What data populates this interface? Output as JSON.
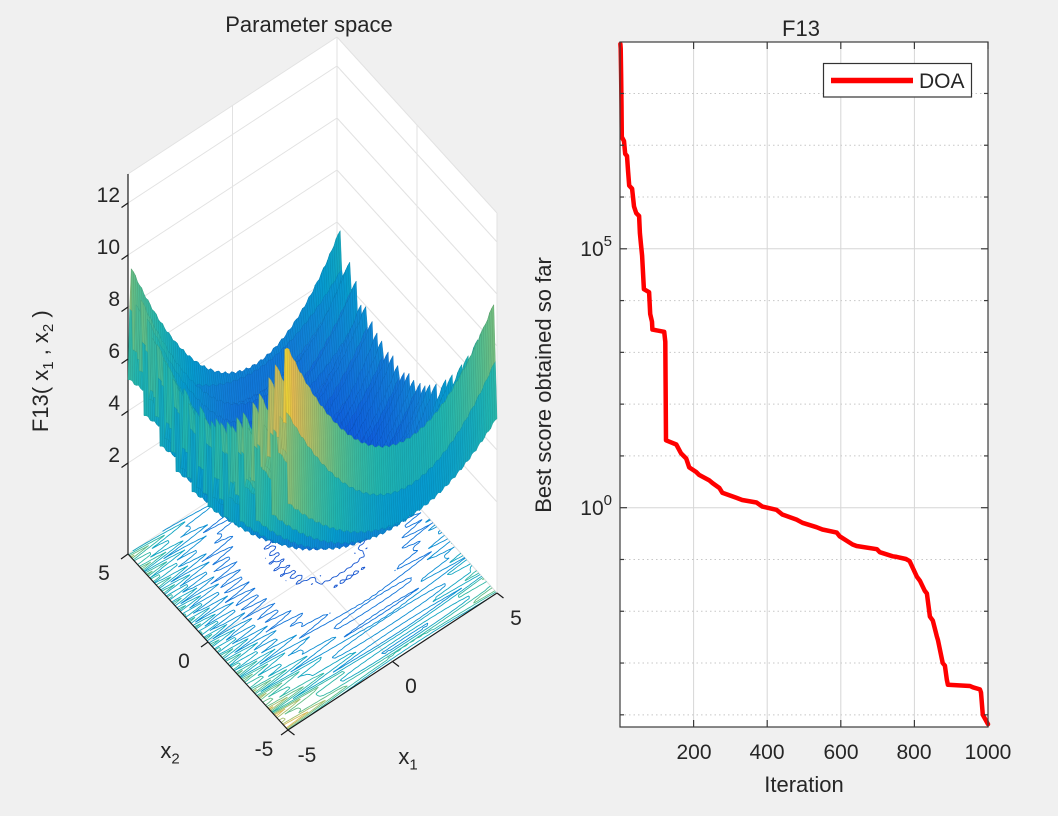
{
  "colors": {
    "background": "#f0f0f0",
    "plot_bg": "#ffffff",
    "axes_text": "#262626",
    "axis_line": "#3b3b3b",
    "grid_solid": "#d6d6d6",
    "grid_dotted": "#c7c7c7",
    "wall_grid": "#e2e2e2",
    "curve_red": "#ff0000",
    "colormap": "parula"
  },
  "left_plot": {
    "title": "Parameter space",
    "zlabel": {
      "prefix": "F13( x",
      "sub1": "1",
      "middle": " , x",
      "sub2": "2",
      "suffix": " )"
    },
    "x1label": {
      "base": "x",
      "sub": "1"
    },
    "x2label": {
      "base": "x",
      "sub": "2"
    },
    "zticks": [
      "2",
      "4",
      "6",
      "8",
      "10",
      "12"
    ],
    "x1_ticks": [
      "-5",
      "0",
      "5"
    ],
    "x2_ticks": [
      "5",
      "0",
      "-5"
    ]
  },
  "right_plot": {
    "title": "F13",
    "xlabel": "Iteration",
    "ylabel": "Best score obtained so far",
    "legend": {
      "label": "DOA"
    },
    "xticks": [
      "200",
      "400",
      "600",
      "800",
      "1000"
    ],
    "ytick_labels": [
      {
        "base": "10",
        "exp": "5",
        "log10": 5
      },
      {
        "base": "10",
        "exp": "0",
        "log10": 0
      }
    ]
  },
  "chart_data": [
    {
      "type": "surface",
      "title": "Parameter space",
      "function": "F13",
      "xlabel": "x_1",
      "ylabel": "x_2",
      "zlabel": "F13( x_1 , x_2 )",
      "x_range": [
        -5,
        5
      ],
      "y_range": [
        -5,
        5
      ],
      "z_ticks": [
        2,
        4,
        6,
        8,
        10,
        12
      ],
      "colormap": "parula",
      "has_floor_contour": true,
      "view": "3d-corner, bowl-shaped spiky multimodal surface, low blue valley near origin, tall yellow spikes toward corners"
    },
    {
      "type": "line",
      "title": "F13",
      "xlabel": "Iteration",
      "ylabel": "Best score obtained so far",
      "x_range": [
        0,
        1000
      ],
      "y_scale": "log10",
      "y_range_log10": [
        -4.23,
        9.0
      ],
      "x_major_ticks": [
        200,
        400,
        600,
        800,
        1000
      ],
      "y_major_tick_logs": [
        5,
        0
      ],
      "grid": "major solid, minor decades dotted",
      "legend_position": "northeast",
      "series": [
        {
          "name": "DOA",
          "color": "#ff0000",
          "line_width": 4.5,
          "points": [
            [
              1,
              900000000
            ],
            [
              2,
              740000000
            ],
            [
              3,
              240000000
            ],
            [
              4,
              60000000
            ],
            [
              5,
              14500000
            ],
            [
              11,
              12000000
            ],
            [
              14,
              6800000
            ],
            [
              19,
              6200000
            ],
            [
              22,
              3100000
            ],
            [
              25,
              1660000
            ],
            [
              33,
              1450000
            ],
            [
              38,
              660000
            ],
            [
              44,
              490000
            ],
            [
              52,
              430000
            ],
            [
              54,
              200000
            ],
            [
              57,
              120000
            ],
            [
              60,
              74000
            ],
            [
              65,
              16600
            ],
            [
              79,
              14500
            ],
            [
              82,
              5500
            ],
            [
              87,
              3900
            ],
            [
              88,
              2750
            ],
            [
              120,
              2500
            ],
            [
              123,
              1600
            ],
            [
              125,
              20
            ],
            [
              153,
              16.6
            ],
            [
              166,
              11.2
            ],
            [
              180,
              8.9
            ],
            [
              188,
              6.0
            ],
            [
              207,
              4.9
            ],
            [
              215,
              4.3
            ],
            [
              242,
              3.4
            ],
            [
              251,
              3.0
            ],
            [
              270,
              2.4
            ],
            [
              278,
              1.95
            ],
            [
              316,
              1.55
            ],
            [
              332,
              1.41
            ],
            [
              371,
              1.26
            ],
            [
              387,
              1.05
            ],
            [
              425,
              0.91
            ],
            [
              441,
              0.74
            ],
            [
              480,
              0.59
            ],
            [
              496,
              0.51
            ],
            [
              534,
              0.42
            ],
            [
              550,
              0.38
            ],
            [
              589,
              0.33
            ],
            [
              597,
              0.28
            ],
            [
              632,
              0.195
            ],
            [
              643,
              0.182
            ],
            [
              698,
              0.158
            ],
            [
              706,
              0.138
            ],
            [
              741,
              0.115
            ],
            [
              752,
              0.112
            ],
            [
              777,
              0.102
            ],
            [
              787,
              0.093
            ],
            [
              807,
              0.046
            ],
            [
              815,
              0.039
            ],
            [
              828,
              0.025
            ],
            [
              834,
              0.022
            ],
            [
              842,
              0.0079
            ],
            [
              850,
              0.0066
            ],
            [
              861,
              0.0033
            ],
            [
              864,
              0.00275
            ],
            [
              877,
              0.001
            ],
            [
              883,
              0.00089
            ],
            [
              888,
              0.00048
            ],
            [
              891,
              0.00038
            ],
            [
              951,
              0.00036
            ],
            [
              959,
              0.00034
            ],
            [
              978,
              0.00031
            ],
            [
              981,
              0.00027
            ],
            [
              986,
              0.0001
            ],
            [
              1000,
              6.6e-05
            ]
          ]
        }
      ]
    }
  ]
}
